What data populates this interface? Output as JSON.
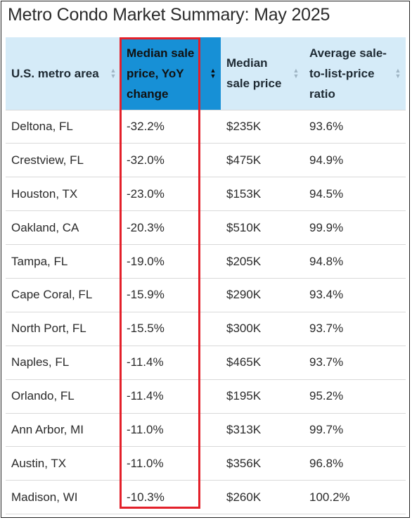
{
  "title": "Metro Condo Market Summary: May 2025",
  "chart_data": {
    "type": "table",
    "title": "Metro Condo Market Summary: May 2025",
    "columns": [
      "U.S. metro area",
      "Median sale price, YoY change",
      "Median sale price",
      "Average sale-to-list-price ratio"
    ],
    "sorted_column": "Median sale price, YoY change",
    "sort_direction": "ascending",
    "highlighted_column": "Median sale price, YoY change",
    "highlight_color": "#e3202a",
    "header_color": "#d5ebf8",
    "active_header_color": "#1790d6",
    "rows": [
      [
        "Deltona, FL",
        "-32.2%",
        "$235K",
        "93.6%"
      ],
      [
        "Crestview, FL",
        "-32.0%",
        "$475K",
        "94.9%"
      ],
      [
        "Houston, TX",
        "-23.0%",
        "$153K",
        "94.5%"
      ],
      [
        "Oakland, CA",
        "-20.3%",
        "$510K",
        "99.9%"
      ],
      [
        "Tampa, FL",
        "-19.0%",
        "$205K",
        "94.8%"
      ],
      [
        "Cape Coral, FL",
        "-15.9%",
        "$290K",
        "93.4%"
      ],
      [
        "North Port, FL",
        "-15.5%",
        "$300K",
        "93.7%"
      ],
      [
        "Naples, FL",
        "-11.4%",
        "$465K",
        "93.7%"
      ],
      [
        "Orlando, FL",
        "-11.4%",
        "$195K",
        "95.2%"
      ],
      [
        "Ann Arbor, MI",
        "-11.0%",
        "$313K",
        "99.7%"
      ],
      [
        "Austin, TX",
        "-11.0%",
        "$356K",
        "96.8%"
      ],
      [
        "Madison, WI",
        "-10.3%",
        "$260K",
        "100.2%"
      ]
    ]
  },
  "icons": {
    "sort": "sort-arrows-icon"
  }
}
